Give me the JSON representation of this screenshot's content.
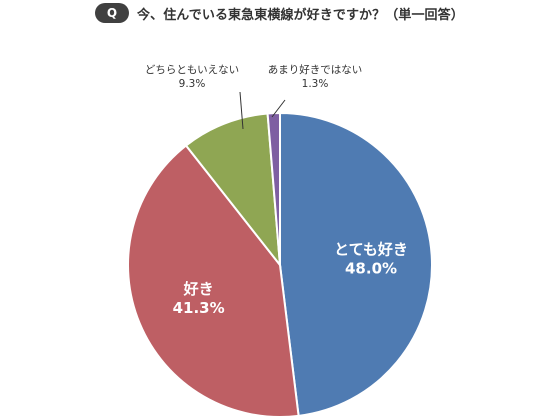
{
  "header": {
    "badge": "Q",
    "question": "今、住んでいる東急東横線が好きですか？（単一回答）"
  },
  "chart_data": {
    "type": "pie",
    "title": "今、住んでいる東急東横線が好きですか？（単一回答）",
    "start": "12 o'clock, clockwise",
    "slices": [
      {
        "label": "とても好き",
        "value_text": "48.0%",
        "value": 48.0,
        "color": "#4F7BB2"
      },
      {
        "label": "好き",
        "value_text": "41.3%",
        "value": 41.3,
        "color": "#BE5F64"
      },
      {
        "label": "どちらともいえない",
        "value_text": "9.3%",
        "value": 9.3,
        "color": "#8FA653"
      },
      {
        "label": "あまり好きではない",
        "value_text": "1.3%",
        "value": 1.3,
        "color": "#7E5FA2"
      }
    ]
  }
}
